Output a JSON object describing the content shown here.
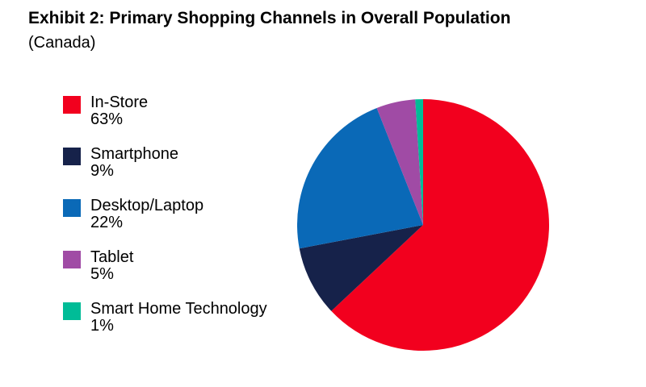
{
  "page": {
    "background": "#ffffff"
  },
  "title": {
    "bold": "Exhibit 2: Primary Shopping Channels in Overall Population",
    "note": "(Canada)"
  },
  "chart_data": {
    "type": "pie",
    "title": "Exhibit 2: Primary Shopping Channels in Overall Population (Canada)",
    "start_angle_deg": 0,
    "direction": "clockwise",
    "legend_position": "left",
    "value_suffix": "%",
    "slices": [
      {
        "label": "In-Store",
        "value": 63,
        "color": "#F2001E"
      },
      {
        "label": "Smartphone",
        "value": 9,
        "color": "#16224A"
      },
      {
        "label": "Desktop/Laptop",
        "value": 22,
        "color": "#0A69B7"
      },
      {
        "label": "Tablet",
        "value": 5,
        "color": "#A04BA5"
      },
      {
        "label": "Smart Home Technology",
        "value": 1,
        "color": "#00BC97"
      }
    ]
  }
}
